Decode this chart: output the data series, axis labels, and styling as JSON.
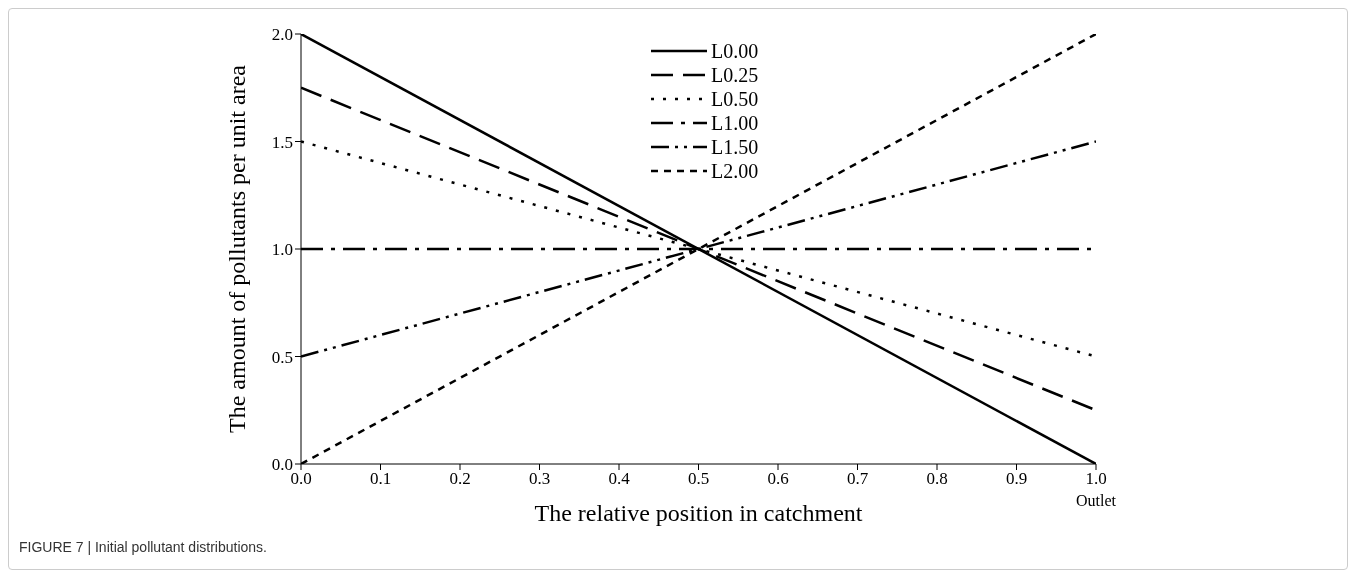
{
  "chart_data": {
    "type": "line",
    "xlabel": "The relative position in catchment",
    "ylabel": "The amount of pollutants per unit area",
    "x": [
      0,
      1
    ],
    "series": [
      {
        "name": "L0.00",
        "color": "#000000",
        "values": [
          2,
          0
        ],
        "line_style": "solid"
      },
      {
        "name": "L0.25",
        "color": "#000000",
        "values": [
          1.75,
          0.25
        ],
        "line_style": "dashed"
      },
      {
        "name": "L0.50",
        "color": "#000000",
        "values": [
          1.5,
          0.5
        ],
        "line_style": "dotted"
      },
      {
        "name": "L1.00",
        "color": "#000000",
        "values": [
          1,
          1
        ],
        "line_style": "dashdot"
      },
      {
        "name": "L1.50",
        "color": "#000000",
        "values": [
          0.5,
          1.5
        ],
        "line_style": "dashdotdot"
      },
      {
        "name": "L2.00",
        "color": "#000000",
        "values": [
          0,
          2
        ],
        "line_style": "shortdash"
      }
    ],
    "xlim": [
      0,
      1
    ],
    "xticks": [
      {
        "value": 0,
        "label": "0.0"
      },
      0.1,
      0.2,
      0.3,
      0.4,
      0.5,
      0.6,
      0.7,
      0.8,
      0.9,
      {
        "value": 1,
        "label": "1.0"
      }
    ],
    "ylim": [
      0,
      2
    ],
    "yticks": [
      {
        "value": 0,
        "label": "0.0"
      },
      0.5,
      {
        "value": 1,
        "label": "1.0"
      },
      1.5,
      {
        "value": 2,
        "label": "2.0"
      }
    ],
    "grid": false,
    "legend": "top",
    "marker": "none",
    "annotations": [
      "Outlet",
      "FIGURE 7 | Initial pollutant distributions."
    ]
  }
}
